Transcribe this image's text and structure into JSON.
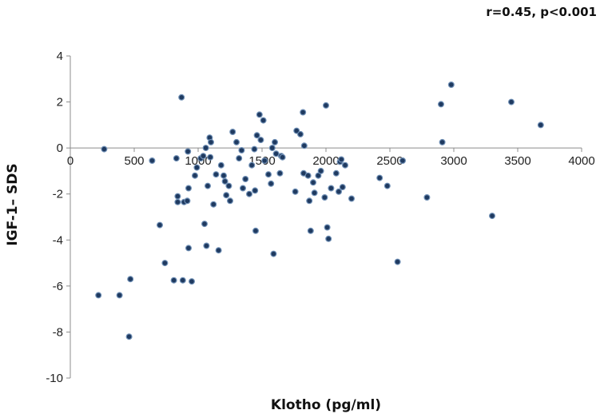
{
  "chart_data": {
    "type": "scatter",
    "annotation": "r=0.45, p<0.001",
    "xlabel": "Klotho (pg/ml)",
    "ylabel": "IGF-1– SDS",
    "xlim": [
      0,
      4000
    ],
    "ylim": [
      -10,
      4
    ],
    "x_ticks": [
      0,
      500,
      1000,
      1500,
      2000,
      2500,
      3000,
      3500,
      4000
    ],
    "y_ticks": [
      4,
      2,
      0,
      -2,
      -4,
      -6,
      -8,
      -10
    ],
    "grid": false,
    "colors": {
      "point_fill": "#1F3A60",
      "point_edge": "#6F8FB5",
      "axis": "#8C8C8C"
    },
    "points": [
      [
        220,
        -6.4
      ],
      [
        265,
        -0.05
      ],
      [
        385,
        -6.4
      ],
      [
        460,
        -8.2
      ],
      [
        470,
        -5.7
      ],
      [
        640,
        -0.55
      ],
      [
        700,
        -3.35
      ],
      [
        740,
        -5.0
      ],
      [
        810,
        -5.75
      ],
      [
        830,
        -0.45
      ],
      [
        840,
        -2.1
      ],
      [
        840,
        -2.35
      ],
      [
        870,
        2.2
      ],
      [
        880,
        -5.75
      ],
      [
        890,
        -2.35
      ],
      [
        915,
        -2.3
      ],
      [
        920,
        -0.15
      ],
      [
        925,
        -1.75
      ],
      [
        925,
        -4.35
      ],
      [
        950,
        -5.8
      ],
      [
        975,
        -1.2
      ],
      [
        990,
        -0.85
      ],
      [
        1020,
        -0.45
      ],
      [
        1040,
        -0.35
      ],
      [
        1050,
        -3.3
      ],
      [
        1060,
        0.0
      ],
      [
        1065,
        -4.25
      ],
      [
        1075,
        -1.65
      ],
      [
        1090,
        0.45
      ],
      [
        1095,
        -0.4
      ],
      [
        1100,
        0.25
      ],
      [
        1120,
        -2.45
      ],
      [
        1140,
        -1.15
      ],
      [
        1160,
        -4.45
      ],
      [
        1180,
        -0.75
      ],
      [
        1200,
        -1.2
      ],
      [
        1210,
        -1.45
      ],
      [
        1220,
        -2.05
      ],
      [
        1240,
        -1.65
      ],
      [
        1250,
        -2.3
      ],
      [
        1270,
        0.7
      ],
      [
        1300,
        0.25
      ],
      [
        1320,
        -0.45
      ],
      [
        1340,
        -0.1
      ],
      [
        1350,
        -1.75
      ],
      [
        1370,
        -1.35
      ],
      [
        1400,
        -2.0
      ],
      [
        1420,
        -0.75
      ],
      [
        1440,
        -0.05
      ],
      [
        1445,
        -1.85
      ],
      [
        1450,
        -3.6
      ],
      [
        1460,
        0.55
      ],
      [
        1480,
        1.45
      ],
      [
        1490,
        0.35
      ],
      [
        1510,
        1.2
      ],
      [
        1520,
        -0.55
      ],
      [
        1550,
        -1.15
      ],
      [
        1570,
        -1.55
      ],
      [
        1580,
        0.0
      ],
      [
        1590,
        -4.6
      ],
      [
        1600,
        0.25
      ],
      [
        1610,
        -0.25
      ],
      [
        1640,
        -1.1
      ],
      [
        1650,
        -0.35
      ],
      [
        1660,
        -0.4
      ],
      [
        1760,
        -1.9
      ],
      [
        1770,
        0.75
      ],
      [
        1800,
        0.6
      ],
      [
        1820,
        1.55
      ],
      [
        1825,
        -1.1
      ],
      [
        1830,
        0.1
      ],
      [
        1860,
        -1.2
      ],
      [
        1870,
        -2.3
      ],
      [
        1880,
        -3.6
      ],
      [
        1900,
        -1.5
      ],
      [
        1910,
        -1.95
      ],
      [
        1940,
        -1.2
      ],
      [
        1960,
        -1.0
      ],
      [
        1990,
        -2.15
      ],
      [
        2000,
        1.85
      ],
      [
        2010,
        -3.45
      ],
      [
        2020,
        -3.95
      ],
      [
        2040,
        -1.75
      ],
      [
        2080,
        -1.1
      ],
      [
        2100,
        -1.9
      ],
      [
        2110,
        -0.6
      ],
      [
        2120,
        -0.5
      ],
      [
        2130,
        -1.7
      ],
      [
        2150,
        -0.75
      ],
      [
        2200,
        -2.2
      ],
      [
        2420,
        -1.3
      ],
      [
        2480,
        -1.65
      ],
      [
        2560,
        -4.95
      ],
      [
        2600,
        -0.55
      ],
      [
        2790,
        -2.15
      ],
      [
        2900,
        1.9
      ],
      [
        2910,
        0.25
      ],
      [
        2980,
        2.75
      ],
      [
        3300,
        -2.95
      ],
      [
        3450,
        2.0
      ],
      [
        3680,
        1.0
      ]
    ]
  }
}
